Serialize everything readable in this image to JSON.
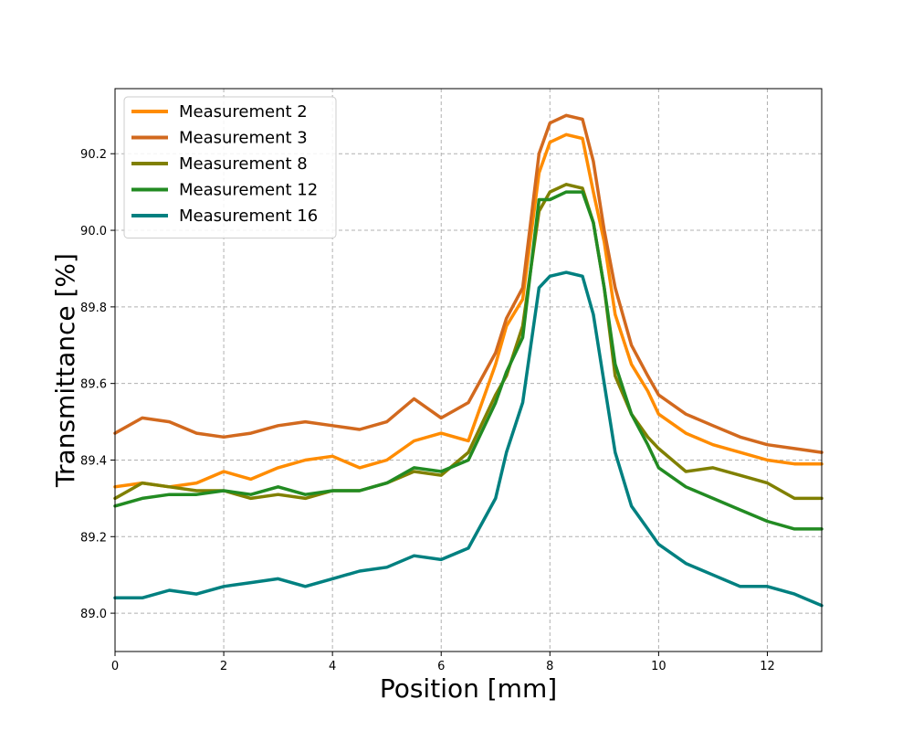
{
  "chart_data": {
    "type": "line",
    "title": "",
    "xlabel": "Position [mm]",
    "ylabel": "Transmittance [%]",
    "xlim": [
      0,
      13
    ],
    "ylim": [
      88.9,
      90.37
    ],
    "x_ticks": [
      0,
      2,
      4,
      6,
      8,
      10,
      12
    ],
    "x_tick_labels": [
      "0",
      "2",
      "4",
      "6",
      "8",
      "10",
      "12"
    ],
    "y_ticks": [
      89.0,
      89.2,
      89.4,
      89.6,
      89.8,
      90.0,
      90.2
    ],
    "y_tick_labels": [
      "89.0",
      "89.2",
      "89.4",
      "89.6",
      "89.8",
      "90.0",
      "90.2"
    ],
    "grid": true,
    "legend_position": "top-left",
    "x": [
      0,
      0.5,
      1,
      1.5,
      2,
      2.5,
      3,
      3.5,
      4,
      4.5,
      5,
      5.5,
      6,
      6.5,
      7,
      7.2,
      7.5,
      7.8,
      8,
      8.3,
      8.6,
      8.8,
      9,
      9.2,
      9.5,
      9.8,
      10,
      10.5,
      11,
      11.5,
      12,
      12.5,
      13
    ],
    "series": [
      {
        "name": "Measurement 2",
        "color": "#ff8c00",
        "values": [
          89.33,
          89.34,
          89.33,
          89.34,
          89.37,
          89.35,
          89.38,
          89.4,
          89.41,
          89.38,
          89.4,
          89.45,
          89.47,
          89.45,
          89.65,
          89.75,
          89.82,
          90.15,
          90.23,
          90.25,
          90.24,
          90.1,
          89.97,
          89.78,
          89.65,
          89.58,
          89.52,
          89.47,
          89.44,
          89.42,
          89.4,
          89.39,
          89.39
        ]
      },
      {
        "name": "Measurement 3",
        "color": "#d2691e",
        "values": [
          89.47,
          89.51,
          89.5,
          89.47,
          89.46,
          89.47,
          89.49,
          89.5,
          89.49,
          89.48,
          89.5,
          89.56,
          89.51,
          89.55,
          89.68,
          89.77,
          89.85,
          90.2,
          90.28,
          90.3,
          90.29,
          90.18,
          90.0,
          89.85,
          89.7,
          89.62,
          89.57,
          89.52,
          89.49,
          89.46,
          89.44,
          89.43,
          89.42
        ]
      },
      {
        "name": "Measurement 8",
        "color": "#808000",
        "values": [
          89.3,
          89.34,
          89.33,
          89.32,
          89.32,
          89.3,
          89.31,
          89.3,
          89.32,
          89.32,
          89.34,
          89.37,
          89.36,
          89.42,
          89.57,
          89.62,
          89.75,
          90.05,
          90.1,
          90.12,
          90.11,
          90.02,
          89.85,
          89.62,
          89.52,
          89.46,
          89.43,
          89.37,
          89.38,
          89.36,
          89.34,
          89.3,
          89.3
        ]
      },
      {
        "name": "Measurement 12",
        "color": "#228b22",
        "values": [
          89.28,
          89.3,
          89.31,
          89.31,
          89.32,
          89.31,
          89.33,
          89.31,
          89.32,
          89.32,
          89.34,
          89.38,
          89.37,
          89.4,
          89.55,
          89.63,
          89.72,
          90.08,
          90.08,
          90.1,
          90.1,
          90.02,
          89.85,
          89.65,
          89.52,
          89.44,
          89.38,
          89.33,
          89.3,
          89.27,
          89.24,
          89.22,
          89.22
        ]
      },
      {
        "name": "Measurement 16",
        "color": "#008080",
        "values": [
          89.04,
          89.04,
          89.06,
          89.05,
          89.07,
          89.08,
          89.09,
          89.07,
          89.09,
          89.11,
          89.12,
          89.15,
          89.14,
          89.17,
          89.3,
          89.42,
          89.55,
          89.85,
          89.88,
          89.89,
          89.88,
          89.78,
          89.6,
          89.42,
          89.28,
          89.22,
          89.18,
          89.13,
          89.1,
          89.07,
          89.07,
          89.05,
          89.02
        ]
      }
    ]
  }
}
